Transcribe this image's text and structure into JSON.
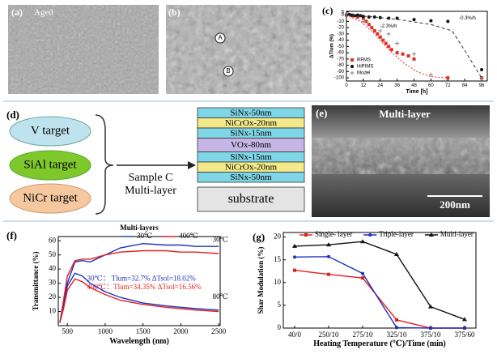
{
  "panel_labels": [
    "(a)",
    "(b)",
    "(c)",
    "(d)",
    "(e)",
    "(f)",
    "(g)"
  ],
  "images": {
    "a_label": "Aged",
    "b_points": [
      "A",
      "B"
    ],
    "e_title": "Multi-layer",
    "e_scale": "200nm"
  },
  "diagram": {
    "targets": [
      "V target",
      "SiAl target",
      "NiCr target"
    ],
    "sample": [
      "Sample C",
      "Multi-layer"
    ],
    "layers": [
      "SiNx-50nm",
      "NiCrOx-20nm",
      "SiNx-15nm",
      "VOx-80nm",
      "SiNx-15nm",
      "NiCrOx-20nm",
      "SiNx-50nm",
      "substrate"
    ]
  },
  "chart_data": [
    {
      "type": "scatter",
      "x_label": "Time [h]",
      "y_label": "ΔTlum (%)",
      "xlim": [
        0,
        100
      ],
      "ylim": [
        -105,
        6
      ],
      "xticks": [
        0,
        12,
        24,
        36,
        48,
        60,
        72,
        84,
        96
      ],
      "yticks": [
        5,
        0,
        -10,
        -20,
        -30,
        -40,
        -50,
        -60,
        -70,
        -80,
        -90,
        -100
      ],
      "legend": "lower left",
      "annotations": [
        "-0.3%/h",
        "-2.3%/h"
      ],
      "series": [
        {
          "name": "RFMS",
          "color": "#e0302a",
          "marker": "square",
          "x": [
            0,
            4,
            8,
            12,
            14,
            16,
            18,
            20,
            22,
            24,
            26,
            28,
            30,
            32,
            36,
            40,
            44,
            48,
            72,
            96
          ],
          "values": [
            0,
            -1,
            -3,
            -5,
            -10,
            -15,
            -20,
            -25,
            -30,
            -35,
            -40,
            -45,
            -50,
            -55,
            -60,
            -62,
            -65,
            -70,
            -100,
            -100
          ]
        },
        {
          "name": "HiPIMS",
          "color": "#111111",
          "marker": "circle",
          "x": [
            0,
            2,
            4,
            6,
            8,
            10,
            12,
            16,
            20,
            24,
            30,
            36,
            48,
            60,
            72,
            96
          ],
          "values": [
            0,
            1,
            0,
            -1,
            0,
            -1,
            -2,
            -3,
            -3,
            -4,
            -5,
            -5,
            -7,
            -9,
            -10,
            -87
          ]
        },
        {
          "name": "Model",
          "color": "#888888",
          "marker": "plus",
          "x": [
            0,
            12,
            24,
            30,
            36,
            48,
            60,
            96
          ],
          "values": [
            0,
            -10,
            -25,
            -30,
            -45,
            -62,
            -95,
            -100
          ]
        },
        {
          "color": "#333333",
          "line": true,
          "dash": "4,3",
          "x": [
            0,
            20,
            40,
            60,
            75,
            85,
            96
          ],
          "values": [
            0,
            -3,
            -8,
            -15,
            -25,
            -60,
            -100
          ]
        },
        {
          "color": "#e0302a",
          "line": true,
          "dash": "2,2",
          "x": [
            0,
            10,
            20,
            30,
            40,
            50,
            60,
            72
          ],
          "values": [
            0,
            -10,
            -30,
            -55,
            -75,
            -90,
            -98,
            -100
          ]
        }
      ]
    },
    {
      "type": "line",
      "title": "Multi-layers",
      "x_label": "Wavelength (nm)",
      "y_label": "Transmittance (%)",
      "xlim": [
        380,
        2520
      ],
      "ylim": [
        0,
        63
      ],
      "xticks": [
        500,
        1000,
        1500,
        2000,
        2500
      ],
      "yticks": [
        10,
        20,
        30,
        40,
        50,
        60
      ],
      "legend": "upper center",
      "annotations": [
        "30℃",
        "80℃",
        "30℃：  Tlum=32.7%    ΔTsol=18.02%",
        "400℃：Tlum=34.35%  ΔTsol=16.56%"
      ],
      "x": [
        400,
        450,
        500,
        600,
        700,
        800,
        1000,
        1200,
        1500,
        1800,
        2000,
        2200,
        2500
      ],
      "series": [
        {
          "name": "30℃",
          "color": "#2030c0",
          "values": [
            2,
            15,
            30,
            45,
            46,
            45,
            50,
            55,
            58,
            57,
            57,
            56,
            56
          ]
        },
        {
          "name": "400℃",
          "color": "#e02020",
          "values": [
            2,
            18,
            35,
            46,
            47,
            47,
            50,
            52,
            53,
            53,
            52,
            52,
            51
          ]
        },
        {
          "color": "#2030c0",
          "values": [
            2,
            14,
            28,
            37,
            35,
            30,
            24,
            20,
            16,
            14,
            13,
            12,
            11
          ]
        },
        {
          "color": "#e02020",
          "values": [
            2,
            12,
            25,
            33,
            31,
            27,
            22,
            18,
            15,
            13,
            12,
            11,
            10
          ]
        }
      ]
    },
    {
      "type": "line",
      "x_label": "Heating Temperature (℃)/Time (min)",
      "y_label": "Shar Modulation (%)",
      "ylim": [
        0,
        21
      ],
      "yticks": [
        0,
        5,
        10,
        15,
        20
      ],
      "legend": "upper center",
      "categories": [
        "40/0",
        "250/10",
        "275/10",
        "325/10",
        "375/10",
        "375/60"
      ],
      "series": [
        {
          "name": "Single- layer",
          "color": "#e02020",
          "marker": "square",
          "values": [
            12.7,
            11.8,
            11.0,
            1.8,
            0,
            0
          ]
        },
        {
          "name": "Triple-layer",
          "color": "#2030c0",
          "marker": "circle",
          "values": [
            15.6,
            15.7,
            12.0,
            0.1,
            0,
            0
          ]
        },
        {
          "name": "Multi-layer",
          "color": "#111111",
          "marker": "triangle",
          "values": [
            18.0,
            18.3,
            19.0,
            16.2,
            4.7,
            1.9
          ]
        }
      ]
    }
  ]
}
